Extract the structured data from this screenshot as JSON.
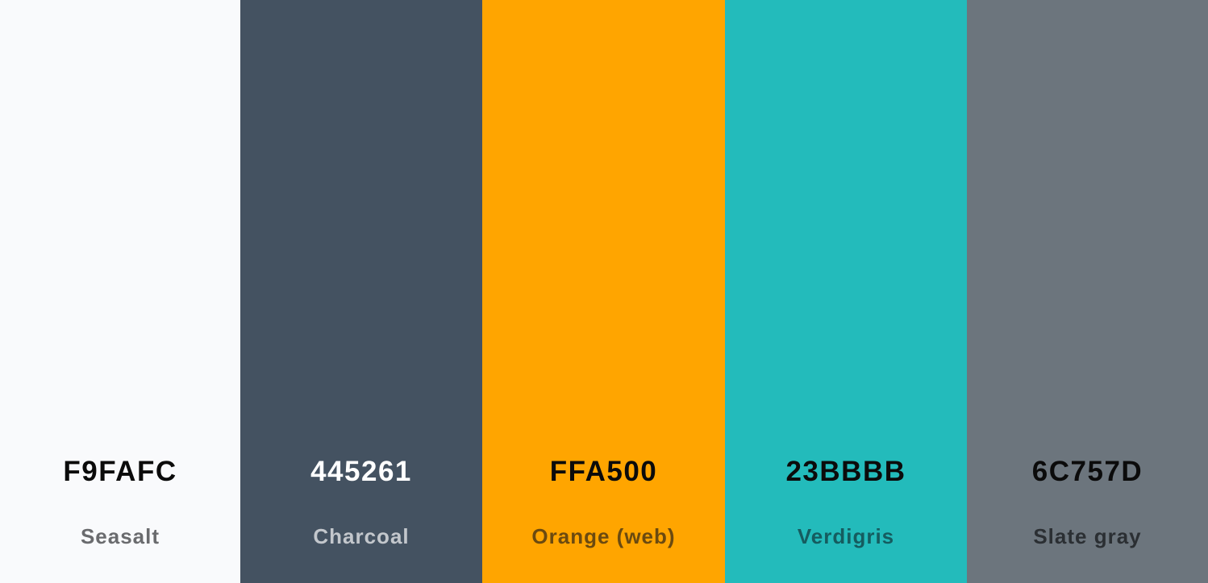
{
  "palette": {
    "swatches": [
      {
        "hex": "F9FAFC",
        "name": "Seasalt",
        "bg": "#F9FAFC",
        "hex_color": "#0b0b0b",
        "name_color": "#6a6b6e"
      },
      {
        "hex": "445261",
        "name": "Charcoal",
        "bg": "#445261",
        "hex_color": "#ffffff",
        "name_color": "#c3c7cc"
      },
      {
        "hex": "FFA500",
        "name": "Orange (web)",
        "bg": "#FFA500",
        "hex_color": "#0b0b0b",
        "name_color": "#6b4a10"
      },
      {
        "hex": "23BBBB",
        "name": "Verdigris",
        "bg": "#23BBBB",
        "hex_color": "#0b0b0b",
        "name_color": "#155c5f"
      },
      {
        "hex": "6C757D",
        "name": "Slate gray",
        "bg": "#6C757D",
        "hex_color": "#0b0b0b",
        "name_color": "#2b2f33"
      }
    ]
  }
}
